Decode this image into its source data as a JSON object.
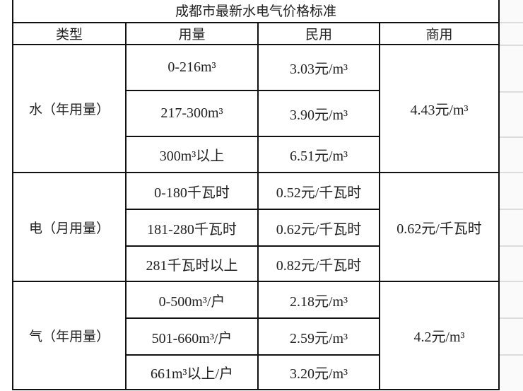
{
  "title": "成都市最新水电气价格标准",
  "headers": [
    "类型",
    "用量",
    "民用",
    "商用"
  ],
  "groups": [
    {
      "type": "水（年用量）",
      "commercial": "4.43元/m³",
      "rows": [
        {
          "usage": "0-216m³",
          "residential": "3.03元/m³"
        },
        {
          "usage": "217-300m³",
          "residential": "3.90元/m³"
        },
        {
          "usage": "300m³以上",
          "residential": "6.51元/m³"
        }
      ]
    },
    {
      "type": "电（月用量）",
      "commercial": "0.62元/千瓦时",
      "rows": [
        {
          "usage": "0-180千瓦时",
          "residential": "0.52元/千瓦时"
        },
        {
          "usage": "181-280千瓦时",
          "residential": "0.62元/千瓦时"
        },
        {
          "usage": "281千瓦时以上",
          "residential": "0.82元/千瓦时"
        }
      ]
    },
    {
      "type": "气（年用量）",
      "commercial": "4.2元/m³",
      "rows": [
        {
          "usage": "0-500m³/户",
          "residential": "2.18元/m³"
        },
        {
          "usage": "501-660m³/户",
          "residential": "2.59元/m³"
        },
        {
          "usage": "661m³以上/户",
          "residential": "3.20元/m³"
        }
      ]
    }
  ]
}
